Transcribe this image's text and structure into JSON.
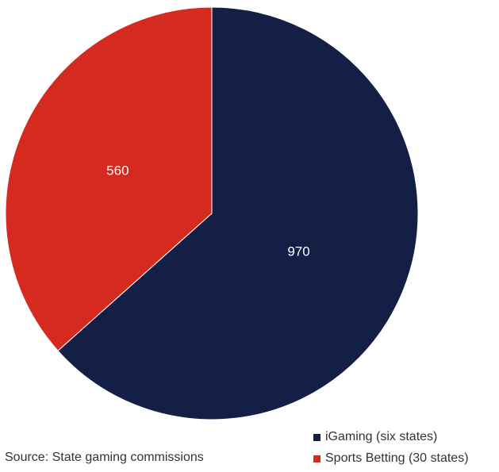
{
  "chart_data": {
    "type": "pie",
    "title": "",
    "slices": [
      {
        "name": "iGaming (six states)",
        "value": 970,
        "label": "970",
        "color": "#131f44"
      },
      {
        "name": "Sports Betting (30 states)",
        "value": 560,
        "label": "560",
        "color": "#d42a20"
      }
    ],
    "start_angle": "top, clockwise",
    "legend_position": "bottom-right"
  },
  "source": "Source: State gaming commissions"
}
